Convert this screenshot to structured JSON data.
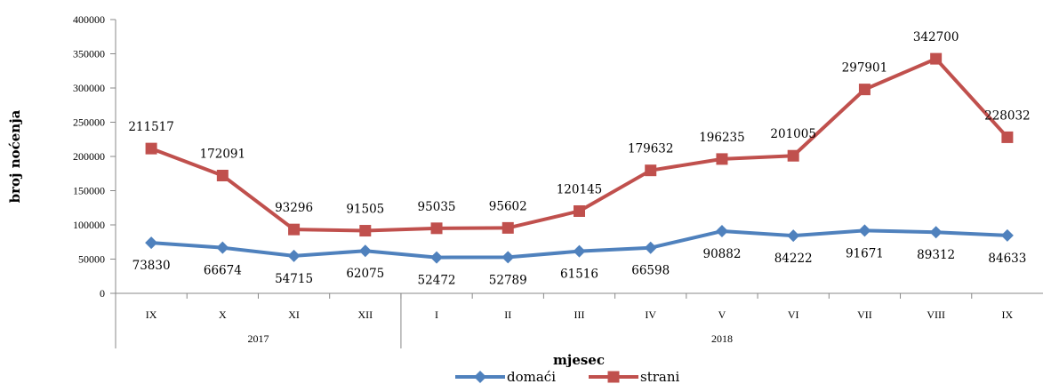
{
  "chart_data": {
    "type": "line",
    "categories": [
      "IX",
      "X",
      "XI",
      "XII",
      "I",
      "II",
      "III",
      "IV",
      "V",
      "VI",
      "VII",
      "VIII",
      "IX"
    ],
    "groups": [
      {
        "label": "2017",
        "count": 4
      },
      {
        "label": "2018",
        "count": 9
      }
    ],
    "series": [
      {
        "name": "domaći",
        "color": "#4F81BD",
        "marker": "diamond",
        "values": [
          73830,
          66674,
          54715,
          62075,
          52472,
          52789,
          61516,
          66598,
          90882,
          84222,
          91671,
          89312,
          84633
        ]
      },
      {
        "name": "strani",
        "color": "#C0504D",
        "marker": "square",
        "values": [
          211517,
          172091,
          93296,
          91505,
          95035,
          95602,
          120145,
          179632,
          196235,
          201005,
          297901,
          342700,
          228032
        ]
      }
    ],
    "yticks": [
      0,
      50000,
      100000,
      150000,
      200000,
      250000,
      300000,
      350000,
      400000
    ],
    "ylim": [
      0,
      400000
    ],
    "xlabel": "mjesec",
    "ylabel": "broj noćenja",
    "legend": "bottom",
    "grid": false
  }
}
